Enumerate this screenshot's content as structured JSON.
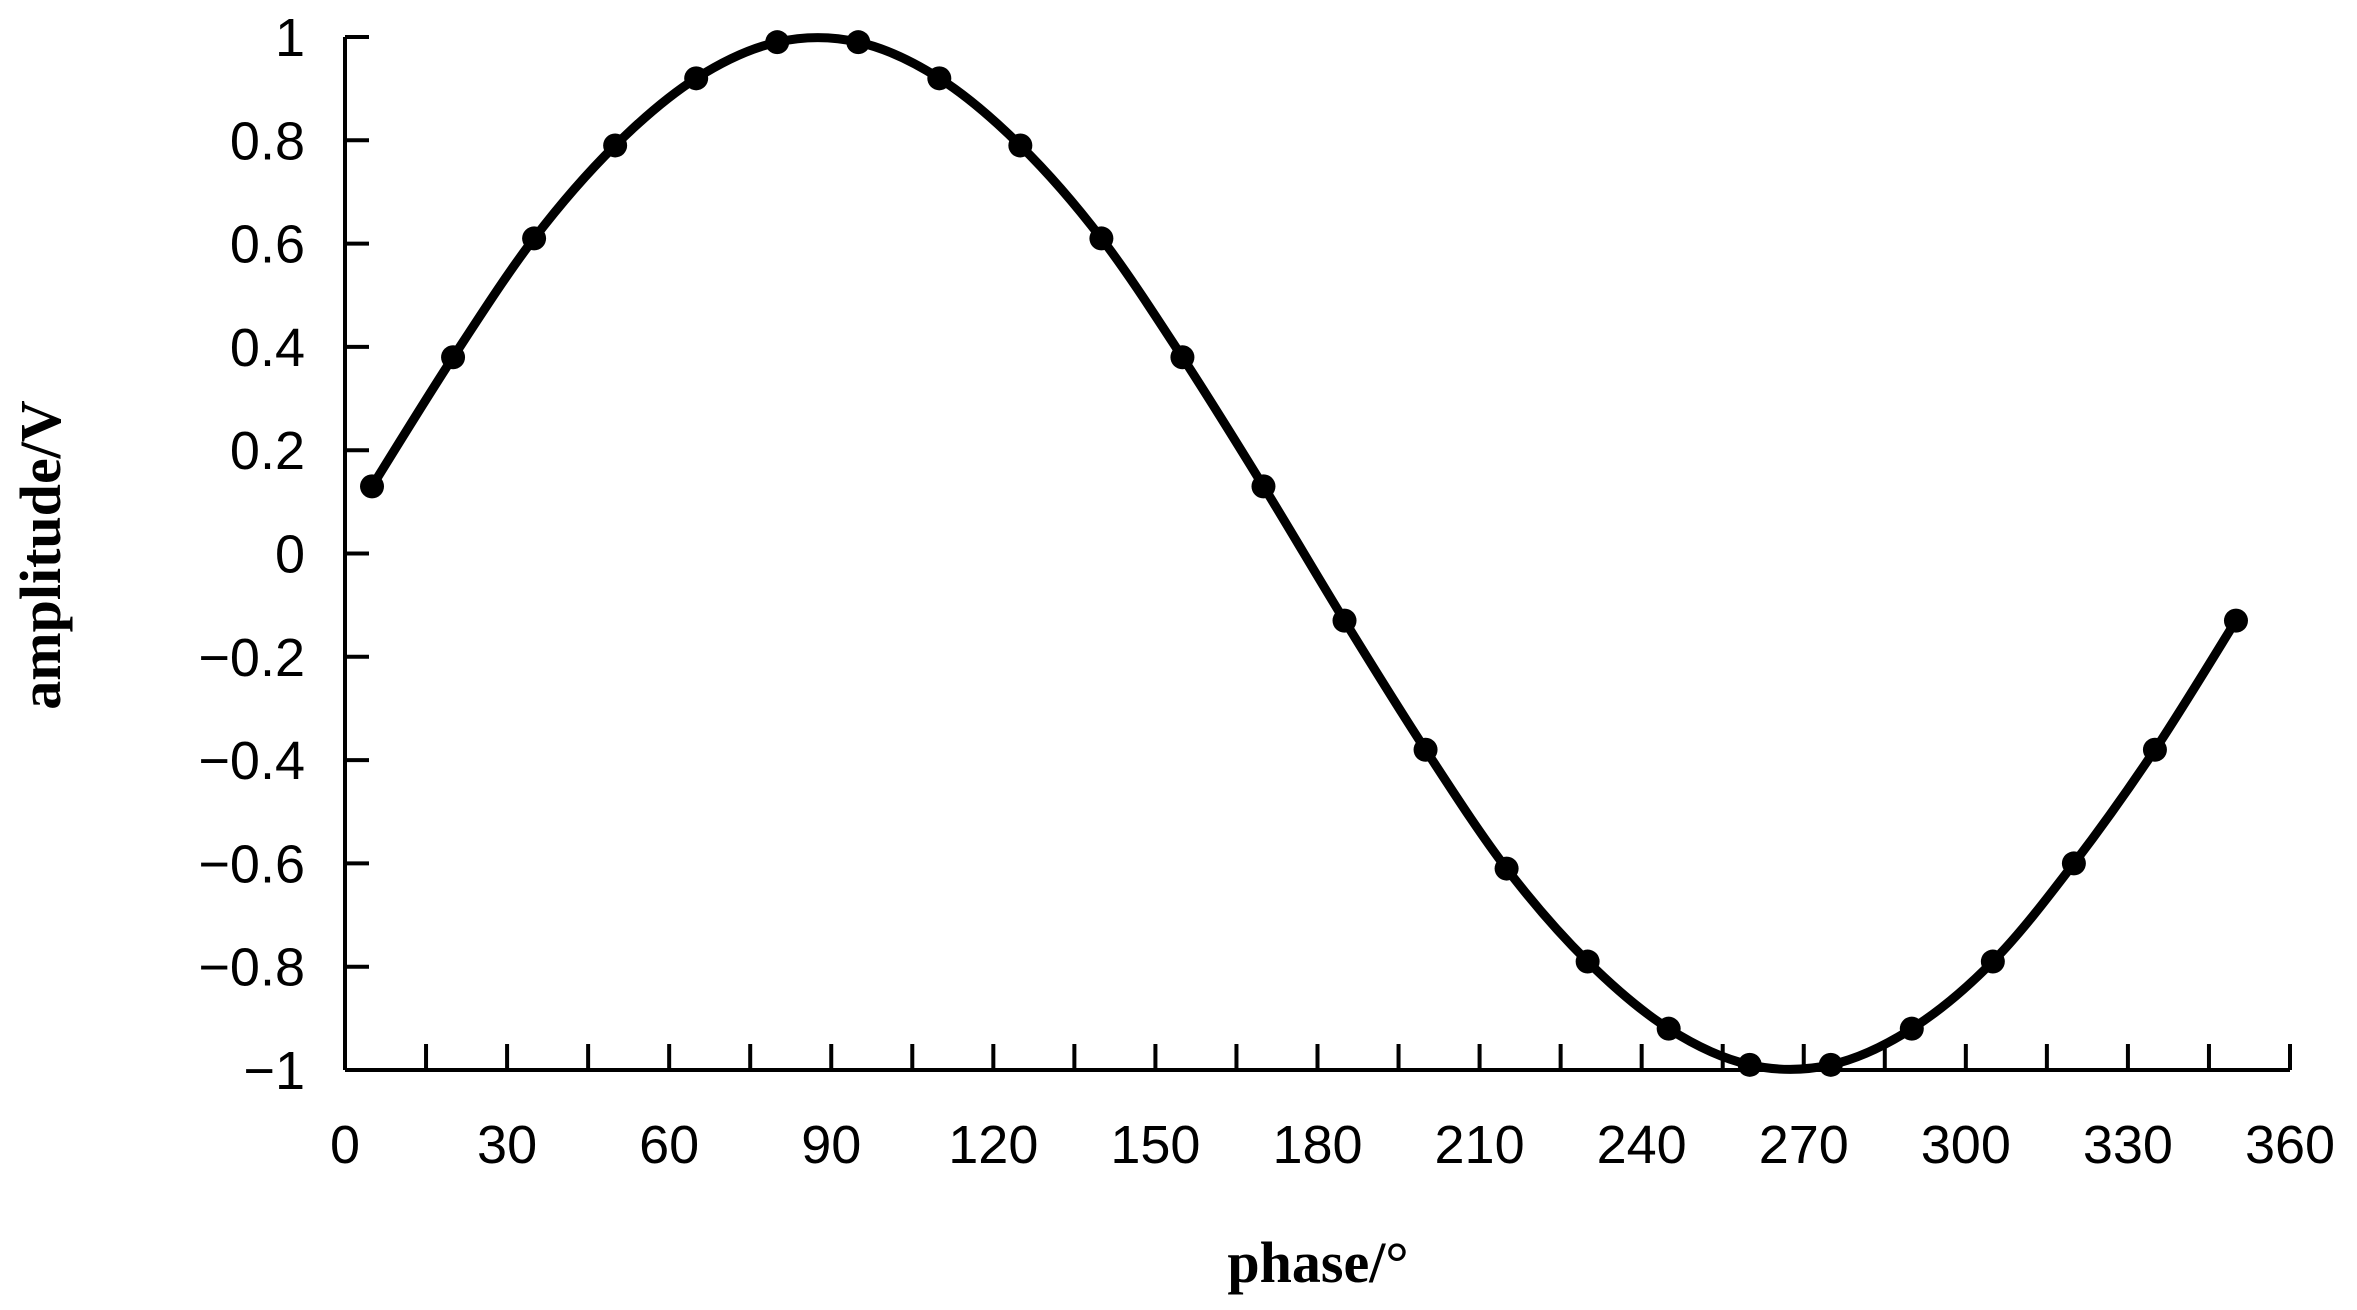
{
  "chart_data": {
    "type": "line",
    "title": "",
    "xlabel": "phase/°",
    "ylabel": "amplitude/V",
    "xlim": [
      0,
      360
    ],
    "ylim": [
      -1,
      1
    ],
    "xticks": [
      0,
      30,
      60,
      90,
      120,
      150,
      180,
      210,
      240,
      270,
      300,
      330,
      360
    ],
    "xtick_labels": [
      "0",
      "30",
      "60",
      "90",
      "120",
      "150",
      "180",
      "210",
      "240",
      "270",
      "300",
      "330",
      "360"
    ],
    "yticks": [
      1,
      0.8,
      0.6,
      0.4,
      0.2,
      0,
      -0.2,
      -0.4,
      -0.6,
      -0.8,
      -1
    ],
    "ytick_labels": [
      "1",
      "0.8",
      "0.6",
      "0.4",
      "0.2",
      "0",
      "−0.2",
      "−0.4",
      "−0.6",
      "−0.8",
      "−1"
    ],
    "grid": false,
    "legend": "none",
    "line_color": "#000000",
    "marker": "circle",
    "curve": "smooth",
    "series": [
      {
        "x": [
          5,
          20,
          35,
          50,
          65,
          80,
          95,
          110,
          125,
          140,
          155,
          170,
          185,
          200,
          215,
          230,
          245,
          260,
          275,
          290,
          305,
          320,
          335,
          350
        ],
        "values": [
          0.13,
          0.38,
          0.61,
          0.79,
          0.92,
          0.99,
          0.99,
          0.92,
          0.79,
          0.61,
          0.38,
          0.13,
          -0.13,
          -0.38,
          -0.61,
          -0.79,
          -0.92,
          -0.99,
          -0.99,
          -0.92,
          -0.79,
          -0.6,
          -0.38,
          -0.13
        ]
      }
    ]
  }
}
